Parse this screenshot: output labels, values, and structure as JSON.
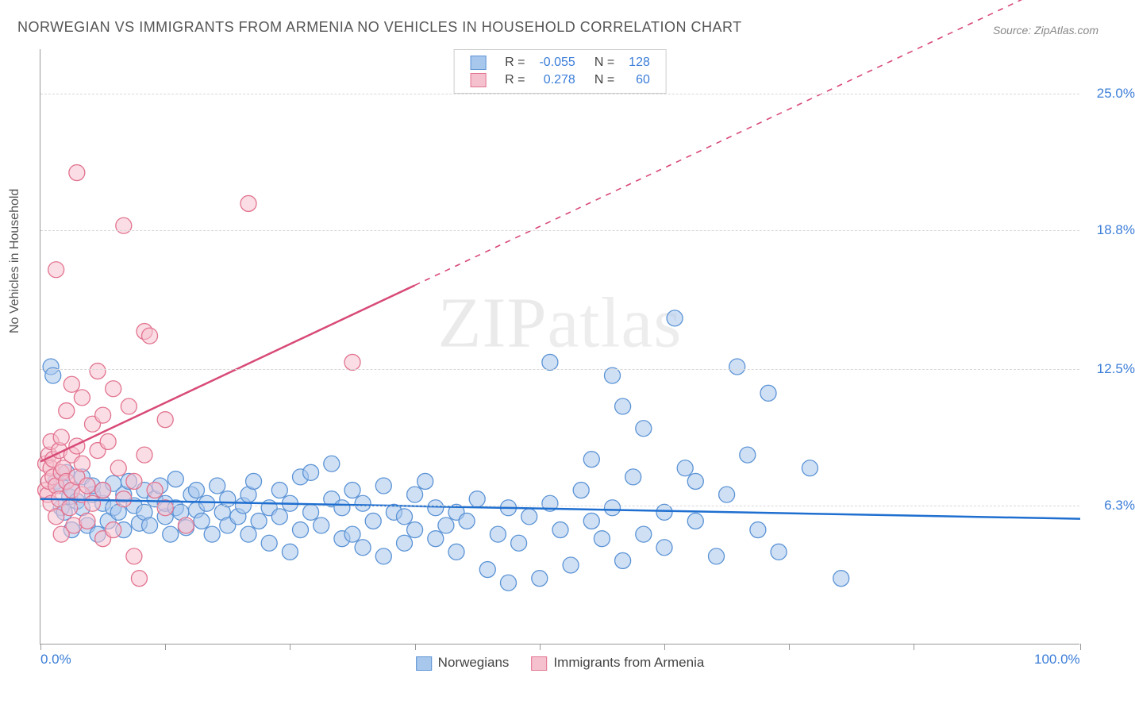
{
  "title": "NORWEGIAN VS IMMIGRANTS FROM ARMENIA NO VEHICLES IN HOUSEHOLD CORRELATION CHART",
  "source": "Source: ZipAtlas.com",
  "ylabel": "No Vehicles in Household",
  "watermark_a": "ZIP",
  "watermark_b": "atlas",
  "chart": {
    "type": "scatter",
    "xlim": [
      0,
      100
    ],
    "ylim": [
      0,
      27
    ],
    "x_ticks_pct": [
      0,
      12,
      24,
      36,
      48,
      60,
      72,
      84,
      100
    ],
    "x_tick_labels": {
      "0": "0.0%",
      "100": "100.0%"
    },
    "y_gridlines": [
      6.3,
      12.5,
      18.8,
      25.0
    ],
    "y_tick_labels": [
      "6.3%",
      "12.5%",
      "18.8%",
      "25.0%"
    ],
    "background_color": "#ffffff",
    "grid_color": "#d8d8d8",
    "axis_color": "#999999",
    "tick_label_color": "#3b7dd8",
    "marker_radius": 10,
    "marker_opacity": 0.55,
    "line_width": 2.5,
    "series": [
      {
        "name": "Norwegians",
        "color_fill": "#a8c7ec",
        "color_stroke": "#5b93d5",
        "line_color": "#1f6fd0",
        "r_value": "-0.055",
        "n_value": "128",
        "trend": {
          "x1": 0,
          "y1": 6.6,
          "x2": 100,
          "y2": 5.7,
          "dash_from_x": null
        },
        "points": [
          [
            1,
            12.6
          ],
          [
            1.2,
            12.2
          ],
          [
            1.5,
            7.4
          ],
          [
            2,
            6.2
          ],
          [
            2,
            7.2
          ],
          [
            2.3,
            6.0
          ],
          [
            2.5,
            7.8
          ],
          [
            2.8,
            6.7
          ],
          [
            3,
            5.2
          ],
          [
            3,
            7.0
          ],
          [
            3.5,
            6.5
          ],
          [
            4,
            6.2
          ],
          [
            4,
            7.6
          ],
          [
            4.5,
            5.4
          ],
          [
            5,
            6.8
          ],
          [
            5,
            7.2
          ],
          [
            5.5,
            5.0
          ],
          [
            6,
            6.4
          ],
          [
            6,
            7.0
          ],
          [
            6.5,
            5.6
          ],
          [
            7,
            6.2
          ],
          [
            7,
            7.3
          ],
          [
            7.5,
            6.0
          ],
          [
            8,
            5.2
          ],
          [
            8,
            6.8
          ],
          [
            8.5,
            7.4
          ],
          [
            9,
            6.3
          ],
          [
            9.5,
            5.5
          ],
          [
            10,
            7.0
          ],
          [
            10,
            6.0
          ],
          [
            10.5,
            5.4
          ],
          [
            11,
            6.6
          ],
          [
            11.5,
            7.2
          ],
          [
            12,
            5.8
          ],
          [
            12,
            6.4
          ],
          [
            12.5,
            5.0
          ],
          [
            13,
            6.2
          ],
          [
            13,
            7.5
          ],
          [
            13.5,
            6.0
          ],
          [
            14,
            5.3
          ],
          [
            14.5,
            6.8
          ],
          [
            15,
            6.1
          ],
          [
            15,
            7.0
          ],
          [
            15.5,
            5.6
          ],
          [
            16,
            6.4
          ],
          [
            16.5,
            5.0
          ],
          [
            17,
            7.2
          ],
          [
            17.5,
            6.0
          ],
          [
            18,
            5.4
          ],
          [
            18,
            6.6
          ],
          [
            19,
            5.8
          ],
          [
            19.5,
            6.3
          ],
          [
            20,
            5.0
          ],
          [
            20,
            6.8
          ],
          [
            20.5,
            7.4
          ],
          [
            21,
            5.6
          ],
          [
            22,
            6.2
          ],
          [
            22,
            4.6
          ],
          [
            23,
            7.0
          ],
          [
            23,
            5.8
          ],
          [
            24,
            4.2
          ],
          [
            24,
            6.4
          ],
          [
            25,
            7.6
          ],
          [
            25,
            5.2
          ],
          [
            26,
            7.8
          ],
          [
            26,
            6.0
          ],
          [
            27,
            5.4
          ],
          [
            28,
            6.6
          ],
          [
            28,
            8.2
          ],
          [
            29,
            4.8
          ],
          [
            29,
            6.2
          ],
          [
            30,
            5.0
          ],
          [
            30,
            7.0
          ],
          [
            31,
            4.4
          ],
          [
            31,
            6.4
          ],
          [
            32,
            5.6
          ],
          [
            33,
            4.0
          ],
          [
            33,
            7.2
          ],
          [
            34,
            6.0
          ],
          [
            35,
            4.6
          ],
          [
            35,
            5.8
          ],
          [
            36,
            6.8
          ],
          [
            36,
            5.2
          ],
          [
            37,
            7.4
          ],
          [
            38,
            4.8
          ],
          [
            38,
            6.2
          ],
          [
            39,
            5.4
          ],
          [
            40,
            4.2
          ],
          [
            40,
            6.0
          ],
          [
            41,
            5.6
          ],
          [
            42,
            6.6
          ],
          [
            43,
            3.4
          ],
          [
            44,
            5.0
          ],
          [
            45,
            2.8
          ],
          [
            45,
            6.2
          ],
          [
            46,
            4.6
          ],
          [
            47,
            5.8
          ],
          [
            48,
            3.0
          ],
          [
            49,
            6.4
          ],
          [
            49,
            12.8
          ],
          [
            50,
            5.2
          ],
          [
            51,
            3.6
          ],
          [
            52,
            7.0
          ],
          [
            53,
            5.6
          ],
          [
            53,
            8.4
          ],
          [
            54,
            4.8
          ],
          [
            55,
            12.2
          ],
          [
            55,
            6.2
          ],
          [
            56,
            10.8
          ],
          [
            56,
            3.8
          ],
          [
            57,
            7.6
          ],
          [
            58,
            5.0
          ],
          [
            58,
            9.8
          ],
          [
            60,
            6.0
          ],
          [
            60,
            4.4
          ],
          [
            61,
            14.8
          ],
          [
            62,
            8.0
          ],
          [
            63,
            5.6
          ],
          [
            63,
            7.4
          ],
          [
            65,
            4.0
          ],
          [
            66,
            6.8
          ],
          [
            67,
            12.6
          ],
          [
            68,
            8.6
          ],
          [
            69,
            5.2
          ],
          [
            70,
            11.4
          ],
          [
            71,
            4.2
          ],
          [
            74,
            8.0
          ],
          [
            77,
            3.0
          ]
        ]
      },
      {
        "name": "Immigrants from Armenia",
        "color_fill": "#f5c1cf",
        "color_stroke": "#e2738f",
        "line_color": "#d84a77",
        "r_value": "0.278",
        "n_value": "60",
        "trend": {
          "x1": 0,
          "y1": 8.3,
          "x2": 100,
          "y2": 30.5,
          "dash_from_x": 36
        },
        "points": [
          [
            0.5,
            8.2
          ],
          [
            0.5,
            7.0
          ],
          [
            0.7,
            6.8
          ],
          [
            0.8,
            8.6
          ],
          [
            0.8,
            7.4
          ],
          [
            1,
            8.0
          ],
          [
            1,
            6.4
          ],
          [
            1,
            9.2
          ],
          [
            1.2,
            7.6
          ],
          [
            1.2,
            8.4
          ],
          [
            1.5,
            5.8
          ],
          [
            1.5,
            7.2
          ],
          [
            1.5,
            17.0
          ],
          [
            1.8,
            8.8
          ],
          [
            1.8,
            6.6
          ],
          [
            2,
            9.4
          ],
          [
            2,
            7.8
          ],
          [
            2,
            5.0
          ],
          [
            2.2,
            8.0
          ],
          [
            2.5,
            7.4
          ],
          [
            2.5,
            10.6
          ],
          [
            2.8,
            6.2
          ],
          [
            3,
            8.6
          ],
          [
            3,
            7.0
          ],
          [
            3,
            11.8
          ],
          [
            3.2,
            5.4
          ],
          [
            3.5,
            9.0
          ],
          [
            3.5,
            7.6
          ],
          [
            3.5,
            21.4
          ],
          [
            4,
            6.8
          ],
          [
            4,
            8.2
          ],
          [
            4,
            11.2
          ],
          [
            4.5,
            7.2
          ],
          [
            4.5,
            5.6
          ],
          [
            5,
            10.0
          ],
          [
            5,
            6.4
          ],
          [
            5.5,
            8.8
          ],
          [
            5.5,
            12.4
          ],
          [
            6,
            7.0
          ],
          [
            6,
            10.4
          ],
          [
            6,
            4.8
          ],
          [
            6.5,
            9.2
          ],
          [
            7,
            5.2
          ],
          [
            7,
            11.6
          ],
          [
            7.5,
            8.0
          ],
          [
            8,
            6.6
          ],
          [
            8,
            19.0
          ],
          [
            8.5,
            10.8
          ],
          [
            9,
            4.0
          ],
          [
            9,
            7.4
          ],
          [
            9.5,
            3.0
          ],
          [
            10,
            14.2
          ],
          [
            10,
            8.6
          ],
          [
            10.5,
            14.0
          ],
          [
            11,
            7.0
          ],
          [
            12,
            6.2
          ],
          [
            12,
            10.2
          ],
          [
            14,
            5.4
          ],
          [
            20,
            20.0
          ],
          [
            30,
            12.8
          ]
        ]
      }
    ]
  },
  "legend_top_label_r": "R =",
  "legend_top_label_n": "N =",
  "legend_bottom": [
    {
      "label": "Norwegians",
      "fill": "#a8c7ec",
      "stroke": "#5b93d5"
    },
    {
      "label": "Immigrants from Armenia",
      "fill": "#f5c1cf",
      "stroke": "#e2738f"
    }
  ]
}
